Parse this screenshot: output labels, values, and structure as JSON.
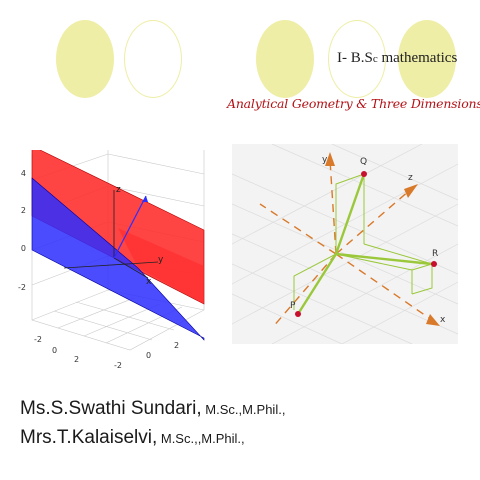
{
  "colors": {
    "circle": "#eeeea6",
    "red_plane": "#ff2a2a",
    "blue_plane": "#2d2dff",
    "vector": "#9ac83a",
    "axis": "#d9792a",
    "point": "#c8102e"
  },
  "header": {
    "course_prefix": "I- B.S",
    "course_small": "c",
    "course_rest": " mathematics",
    "subject": "Analytical Geometry & Three Dimensions"
  },
  "figure_3d": {
    "z_ticks": [
      "4",
      "2",
      "0",
      "-2"
    ],
    "x_ticks": [
      "-2",
      "0",
      "2"
    ],
    "y_ticks": [
      "-2",
      "0",
      "2"
    ],
    "axis_z": "z",
    "axis_y": "y",
    "axis_x": "x"
  },
  "figure_vectors": {
    "point_q": "Q",
    "point_r": "R",
    "point_p": "P",
    "axis_y": "y",
    "axis_z": "z",
    "axis_x": "x"
  },
  "authors": [
    {
      "name": "Ms.S.Swathi Sundari,",
      "degrees": " M.Sc.,M.Phil.,"
    },
    {
      "name": "Mrs.T.Kalaiselvi,",
      "degrees": " M.Sc.,,M.Phil.,"
    }
  ]
}
